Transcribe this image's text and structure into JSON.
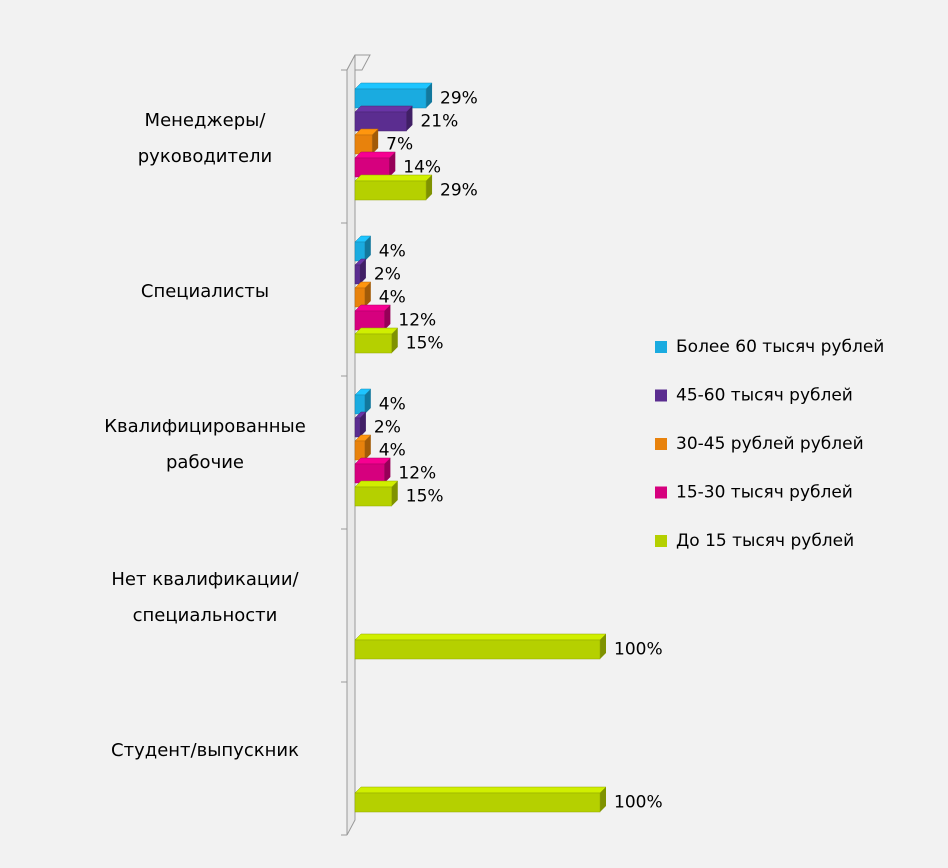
{
  "chart_data": {
    "type": "bar3d_horizontal",
    "categories": [
      "Менеджеры/руководители",
      "Специалисты",
      "Квалифицированные рабочие",
      "Нет квалификации/специальности",
      "Студент/выпускник"
    ],
    "series": [
      {
        "name": "Более 60 тысяч рублей",
        "color": "#1aabe0",
        "values": [
          29,
          4,
          4,
          null,
          null
        ],
        "value_labels": [
          "29%",
          "4%",
          "4%",
          null,
          null
        ]
      },
      {
        "name": "45-60 тысяч рублей",
        "color": "#5b2d90",
        "values": [
          21,
          2,
          2,
          null,
          null
        ],
        "value_labels": [
          "21%",
          "2%",
          "2%",
          null,
          null
        ]
      },
      {
        "name": "30-45 рублей рублей",
        "color": "#e8820c",
        "values": [
          7,
          4,
          4,
          null,
          null
        ],
        "value_labels": [
          "7%",
          "4%",
          "4%",
          null,
          null
        ]
      },
      {
        "name": "15-30 тысяч рублей",
        "color": "#d6007e",
        "values": [
          14,
          12,
          12,
          null,
          null
        ],
        "value_labels": [
          "14%",
          "12%",
          "12%",
          null,
          null
        ]
      },
      {
        "name": "До 15 тысяч рублей",
        "color": "#b5d000",
        "values": [
          29,
          15,
          15,
          100,
          100
        ],
        "value_labels": [
          "29%",
          "15%",
          "15%",
          "100%",
          "100%"
        ]
      }
    ],
    "xlim": [
      0,
      100
    ],
    "legend": "right"
  }
}
